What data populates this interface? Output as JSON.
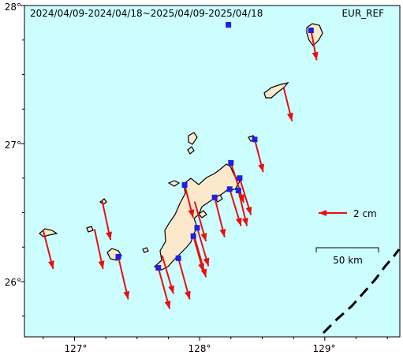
{
  "map": {
    "period": "2024/04/09-2024/04/18~2025/04/09-2025/04/18",
    "reference_frame": "EUR_REF",
    "colors": {
      "sea": "#ccfeff",
      "land": "#fce9cb",
      "coast": "#000000",
      "vector": "#e80f0f",
      "station": "#1f1fe0",
      "trench": "#000000"
    },
    "axes": {
      "lon_range": [
        126.6,
        129.6
      ],
      "lat_range": [
        25.6,
        28.0
      ],
      "x_ticks": [
        {
          "value": 127,
          "label": "127°"
        },
        {
          "value": 128,
          "label": "128°"
        },
        {
          "value": 129,
          "label": "129°"
        }
      ],
      "y_ticks": [
        {
          "value": 26,
          "label": "26°"
        },
        {
          "value": 27,
          "label": "27°"
        },
        {
          "value": 28,
          "label": "28°"
        }
      ]
    },
    "legend": {
      "vector_label": "2 cm",
      "scale_label": "50 km"
    },
    "stations": [
      {
        "lon": 128.89,
        "lat": 27.82,
        "de_cm": 0.4,
        "dn_cm": -2.1
      },
      {
        "lon": 128.23,
        "lat": 27.86,
        "de_cm": 0.0,
        "dn_cm": 0.0
      },
      {
        "lon": 128.44,
        "lat": 27.03,
        "de_cm": 0.6,
        "dn_cm": -2.3
      },
      {
        "lon": 128.25,
        "lat": 26.86,
        "de_cm": 0.9,
        "dn_cm": -2.8
      },
      {
        "lon": 128.32,
        "lat": 26.75,
        "de_cm": 0.8,
        "dn_cm": -2.6
      },
      {
        "lon": 128.24,
        "lat": 26.67,
        "de_cm": 0.8,
        "dn_cm": -2.6
      },
      {
        "lon": 127.88,
        "lat": 26.7,
        "de_cm": 0.6,
        "dn_cm": -2.3
      },
      {
        "lon": 128.12,
        "lat": 26.61,
        "de_cm": 0.7,
        "dn_cm": -2.8
      },
      {
        "lon": 127.98,
        "lat": 26.39,
        "de_cm": 0.8,
        "dn_cm": -2.7
      },
      {
        "lon": 127.95,
        "lat": 26.33,
        "de_cm": 0.7,
        "dn_cm": -2.5
      },
      {
        "lon": 127.83,
        "lat": 26.17,
        "de_cm": 0.8,
        "dn_cm": -2.9
      },
      {
        "lon": 127.67,
        "lat": 26.1,
        "de_cm": 0.8,
        "dn_cm": -2.9
      },
      {
        "lon": 127.35,
        "lat": 26.18,
        "de_cm": 0.7,
        "dn_cm": -3.0
      },
      {
        "lon": 128.31,
        "lat": 26.66,
        "de_cm": 0.6,
        "dn_cm": -2.5
      }
    ],
    "extra_vectors": [
      {
        "lon": 128.67,
        "lat": 27.41,
        "de_cm": 0.6,
        "dn_cm": -2.4
      },
      {
        "lon": 126.75,
        "lat": 26.37,
        "de_cm": 0.7,
        "dn_cm": -2.7
      },
      {
        "lon": 127.16,
        "lat": 26.38,
        "de_cm": 0.6,
        "dn_cm": -2.8
      },
      {
        "lon": 127.22,
        "lat": 26.59,
        "de_cm": 0.6,
        "dn_cm": -2.8
      },
      {
        "lon": 127.96,
        "lat": 26.58,
        "de_cm": 0.8,
        "dn_cm": -2.8
      },
      {
        "lon": 127.96,
        "lat": 26.32,
        "de_cm": 0.8,
        "dn_cm": -2.8
      },
      {
        "lon": 127.7,
        "lat": 26.19,
        "de_cm": 0.8,
        "dn_cm": -2.7
      }
    ]
  }
}
